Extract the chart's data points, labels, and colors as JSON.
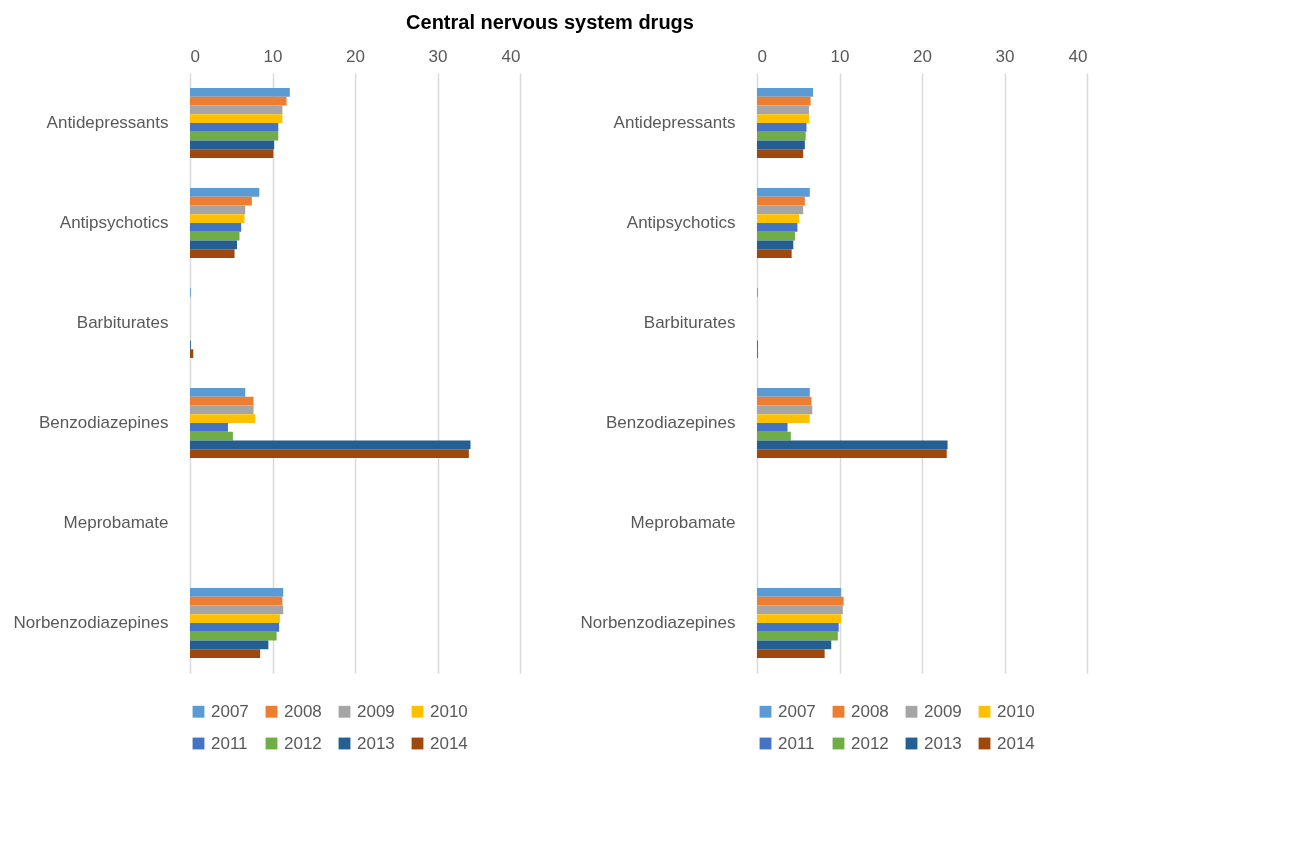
{
  "chart_data": [
    {
      "type": "bar",
      "title": "Central nervous system drugs",
      "orientation": "horizontal",
      "categories": [
        "Antidepressants",
        "Antipsychotics",
        "Barbiturates",
        "Benzodiazepines",
        "Meprobamate",
        "Norbenzodiazepines"
      ],
      "xlim": [
        0,
        40
      ],
      "xticks": [
        0,
        10,
        20,
        30,
        40
      ],
      "grid": "x",
      "legend": "bottom",
      "series": [
        {
          "name": "2007",
          "color": "#5b9bd5",
          "values": [
            12.1,
            8.4,
            0.1,
            6.7,
            0,
            11.3
          ]
        },
        {
          "name": "2008",
          "color": "#ed7d31",
          "values": [
            11.7,
            7.5,
            0,
            7.7,
            0,
            11.2
          ]
        },
        {
          "name": "2009",
          "color": "#a5a5a5",
          "values": [
            11.2,
            6.7,
            0,
            7.7,
            0,
            11.3
          ]
        },
        {
          "name": "2010",
          "color": "#ffc000",
          "values": [
            11.2,
            6.6,
            0,
            7.9,
            0,
            10.9
          ]
        },
        {
          "name": "2011",
          "color": "#4472c4",
          "values": [
            10.7,
            6.2,
            0,
            4.6,
            0,
            10.8
          ]
        },
        {
          "name": "2012",
          "color": "#70ad47",
          "values": [
            10.7,
            6.0,
            0,
            5.2,
            0,
            10.5
          ]
        },
        {
          "name": "2013",
          "color": "#255e91",
          "values": [
            10.2,
            5.7,
            0.1,
            34.0,
            0,
            9.5
          ]
        },
        {
          "name": "2014",
          "color": "#9e480e",
          "values": [
            10.1,
            5.4,
            0.4,
            33.8,
            0,
            8.5
          ]
        }
      ]
    },
    {
      "type": "bar",
      "orientation": "horizontal",
      "categories": [
        "Antidepressants",
        "Antipsychotics",
        "Barbiturates",
        "Benzodiazepines",
        "Meprobamate",
        "Norbenzodiazepines"
      ],
      "xlim": [
        0,
        40
      ],
      "xticks": [
        0,
        10,
        20,
        30,
        40
      ],
      "grid": "x",
      "legend": "bottom",
      "series": [
        {
          "name": "2007",
          "color": "#5b9bd5",
          "values": [
            6.8,
            6.4,
            0.1,
            6.4,
            0,
            10.2
          ]
        },
        {
          "name": "2008",
          "color": "#ed7d31",
          "values": [
            6.5,
            5.8,
            0,
            6.6,
            0,
            10.5
          ]
        },
        {
          "name": "2009",
          "color": "#a5a5a5",
          "values": [
            6.3,
            5.6,
            0,
            6.7,
            0,
            10.4
          ]
        },
        {
          "name": "2010",
          "color": "#ffc000",
          "values": [
            6.3,
            5.1,
            0,
            6.4,
            0,
            10.2
          ]
        },
        {
          "name": "2011",
          "color": "#4472c4",
          "values": [
            6.0,
            4.9,
            0,
            3.7,
            0,
            9.9
          ]
        },
        {
          "name": "2012",
          "color": "#70ad47",
          "values": [
            5.9,
            4.6,
            0,
            4.1,
            0,
            9.8
          ]
        },
        {
          "name": "2013",
          "color": "#255e91",
          "values": [
            5.8,
            4.4,
            0.1,
            23.1,
            0,
            9.0
          ]
        },
        {
          "name": "2014",
          "color": "#9e480e",
          "values": [
            5.6,
            4.2,
            0.1,
            23.0,
            0,
            8.2
          ]
        }
      ]
    }
  ]
}
